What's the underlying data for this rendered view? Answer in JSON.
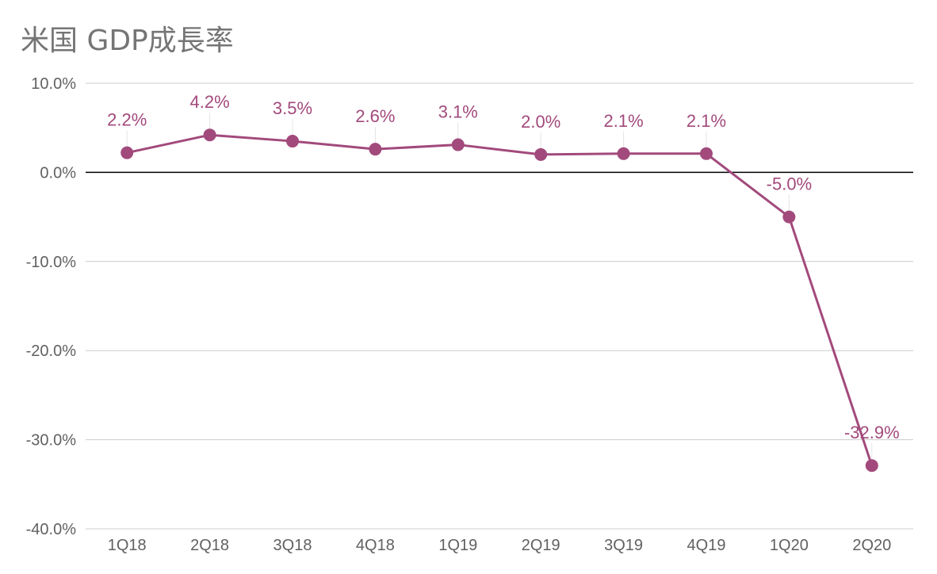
{
  "colors": {
    "series": "#a24a7c",
    "grid": "#cccccc",
    "zero_line": "#000000",
    "title": "#757575",
    "tick": "#616161"
  },
  "chart_data": {
    "type": "line",
    "title": "米国 GDP成長率",
    "xlabel": "",
    "ylabel": "",
    "categories": [
      "1Q18",
      "2Q18",
      "3Q18",
      "4Q18",
      "1Q19",
      "2Q19",
      "3Q19",
      "4Q19",
      "1Q20",
      "2Q20"
    ],
    "series": [
      {
        "values": [
          2.2,
          4.2,
          3.5,
          2.6,
          3.1,
          2.0,
          2.1,
          2.1,
          -5.0,
          -32.9
        ],
        "data_labels": [
          "2.2%",
          "4.2%",
          "3.5%",
          "2.6%",
          "3.1%",
          "2.0%",
          "2.1%",
          "2.1%",
          "-5.0%",
          "-32.9%"
        ]
      }
    ],
    "ylim": [
      -40,
      10
    ],
    "y_ticks": [
      10,
      0,
      -10,
      -20,
      -30,
      -40
    ],
    "y_tick_labels": [
      "10.0%",
      "0.0%",
      "-10.0%",
      "-20.0%",
      "-30.0%",
      "-40.0%"
    ],
    "grid": true,
    "legend": "none"
  }
}
